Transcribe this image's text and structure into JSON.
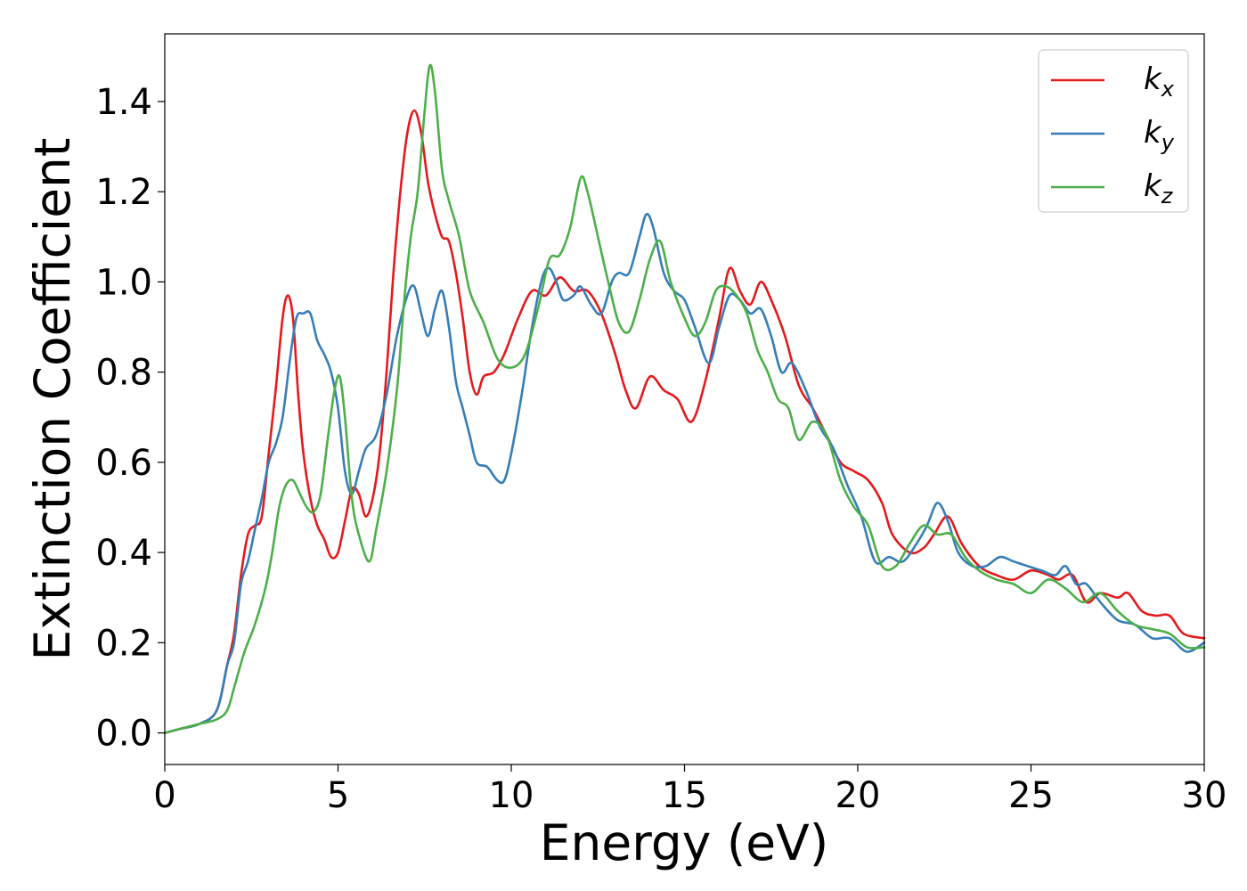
{
  "chart_data": {
    "type": "line",
    "title": "",
    "xlabel": "Energy (eV)",
    "ylabel": "Extinction Coefficient",
    "xlim": [
      0,
      30
    ],
    "ylim": [
      -0.07,
      1.55
    ],
    "xticks": [
      0,
      5,
      10,
      15,
      20,
      25,
      30
    ],
    "xtick_labels": [
      "0",
      "5",
      "10",
      "15",
      "20",
      "25",
      "30"
    ],
    "yticks": [
      0.0,
      0.2,
      0.4,
      0.6,
      0.8,
      1.0,
      1.2,
      1.4
    ],
    "ytick_labels": [
      "0.0",
      "0.2",
      "0.4",
      "0.6",
      "0.8",
      "1.0",
      "1.2",
      "1.4"
    ],
    "grid": false,
    "legend_position": "top-right",
    "series": [
      {
        "name": "k_x",
        "label_base": "k",
        "label_sub": "x",
        "color": "#e41a1c",
        "points": [
          [
            0,
            0
          ],
          [
            0.5,
            0.01
          ],
          [
            1.0,
            0.02
          ],
          [
            1.5,
            0.05
          ],
          [
            1.8,
            0.15
          ],
          [
            2.0,
            0.22
          ],
          [
            2.2,
            0.35
          ],
          [
            2.4,
            0.44
          ],
          [
            2.6,
            0.46
          ],
          [
            2.8,
            0.48
          ],
          [
            3.0,
            0.62
          ],
          [
            3.2,
            0.76
          ],
          [
            3.4,
            0.92
          ],
          [
            3.55,
            0.97
          ],
          [
            3.7,
            0.92
          ],
          [
            3.85,
            0.75
          ],
          [
            4.0,
            0.62
          ],
          [
            4.2,
            0.52
          ],
          [
            4.4,
            0.46
          ],
          [
            4.6,
            0.43
          ],
          [
            4.8,
            0.39
          ],
          [
            5.0,
            0.4
          ],
          [
            5.2,
            0.47
          ],
          [
            5.4,
            0.54
          ],
          [
            5.6,
            0.53
          ],
          [
            5.8,
            0.48
          ],
          [
            6.0,
            0.52
          ],
          [
            6.2,
            0.62
          ],
          [
            6.4,
            0.8
          ],
          [
            6.6,
            1.02
          ],
          [
            6.8,
            1.2
          ],
          [
            7.0,
            1.33
          ],
          [
            7.2,
            1.38
          ],
          [
            7.4,
            1.33
          ],
          [
            7.6,
            1.22
          ],
          [
            7.8,
            1.15
          ],
          [
            8.0,
            1.1
          ],
          [
            8.2,
            1.09
          ],
          [
            8.4,
            1.02
          ],
          [
            8.6,
            0.92
          ],
          [
            8.8,
            0.8
          ],
          [
            9.0,
            0.75
          ],
          [
            9.2,
            0.79
          ],
          [
            9.5,
            0.8
          ],
          [
            9.8,
            0.84
          ],
          [
            10.2,
            0.92
          ],
          [
            10.6,
            0.98
          ],
          [
            11.0,
            0.97
          ],
          [
            11.4,
            1.01
          ],
          [
            11.8,
            0.98
          ],
          [
            12.2,
            0.98
          ],
          [
            12.6,
            0.93
          ],
          [
            13.0,
            0.84
          ],
          [
            13.3,
            0.76
          ],
          [
            13.6,
            0.72
          ],
          [
            14.0,
            0.79
          ],
          [
            14.4,
            0.76
          ],
          [
            14.8,
            0.74
          ],
          [
            15.2,
            0.69
          ],
          [
            15.6,
            0.78
          ],
          [
            16.0,
            0.92
          ],
          [
            16.3,
            1.03
          ],
          [
            16.6,
            0.98
          ],
          [
            16.9,
            0.95
          ],
          [
            17.2,
            1.0
          ],
          [
            17.5,
            0.96
          ],
          [
            17.9,
            0.88
          ],
          [
            18.3,
            0.77
          ],
          [
            18.7,
            0.72
          ],
          [
            19.1,
            0.66
          ],
          [
            19.5,
            0.6
          ],
          [
            19.9,
            0.58
          ],
          [
            20.3,
            0.56
          ],
          [
            20.7,
            0.51
          ],
          [
            21.0,
            0.44
          ],
          [
            21.5,
            0.4
          ],
          [
            21.9,
            0.41
          ],
          [
            22.2,
            0.44
          ],
          [
            22.6,
            0.48
          ],
          [
            23.0,
            0.42
          ],
          [
            23.5,
            0.37
          ],
          [
            24.0,
            0.35
          ],
          [
            24.5,
            0.34
          ],
          [
            25.0,
            0.36
          ],
          [
            25.5,
            0.35
          ],
          [
            25.8,
            0.34
          ],
          [
            26.2,
            0.35
          ],
          [
            26.6,
            0.29
          ],
          [
            27.0,
            0.31
          ],
          [
            27.5,
            0.3
          ],
          [
            27.8,
            0.31
          ],
          [
            28.2,
            0.27
          ],
          [
            28.6,
            0.26
          ],
          [
            29.0,
            0.26
          ],
          [
            29.4,
            0.22
          ],
          [
            30.0,
            0.21
          ]
        ]
      },
      {
        "name": "k_y",
        "label_base": "k",
        "label_sub": "y",
        "color": "#377eb8",
        "points": [
          [
            0,
            0
          ],
          [
            0.5,
            0.01
          ],
          [
            1.0,
            0.02
          ],
          [
            1.5,
            0.05
          ],
          [
            1.8,
            0.15
          ],
          [
            2.0,
            0.2
          ],
          [
            2.2,
            0.33
          ],
          [
            2.4,
            0.38
          ],
          [
            2.6,
            0.45
          ],
          [
            2.8,
            0.52
          ],
          [
            3.0,
            0.6
          ],
          [
            3.2,
            0.64
          ],
          [
            3.4,
            0.7
          ],
          [
            3.6,
            0.82
          ],
          [
            3.8,
            0.92
          ],
          [
            4.0,
            0.93
          ],
          [
            4.2,
            0.93
          ],
          [
            4.4,
            0.87
          ],
          [
            4.6,
            0.84
          ],
          [
            4.8,
            0.8
          ],
          [
            5.0,
            0.72
          ],
          [
            5.2,
            0.58
          ],
          [
            5.4,
            0.53
          ],
          [
            5.6,
            0.58
          ],
          [
            5.8,
            0.63
          ],
          [
            6.1,
            0.66
          ],
          [
            6.4,
            0.75
          ],
          [
            6.7,
            0.88
          ],
          [
            7.0,
            0.97
          ],
          [
            7.2,
            0.99
          ],
          [
            7.4,
            0.93
          ],
          [
            7.6,
            0.88
          ],
          [
            7.8,
            0.94
          ],
          [
            8.0,
            0.98
          ],
          [
            8.2,
            0.9
          ],
          [
            8.4,
            0.78
          ],
          [
            8.6,
            0.72
          ],
          [
            8.8,
            0.66
          ],
          [
            9.0,
            0.6
          ],
          [
            9.3,
            0.59
          ],
          [
            9.6,
            0.56
          ],
          [
            9.8,
            0.56
          ],
          [
            10.0,
            0.62
          ],
          [
            10.3,
            0.75
          ],
          [
            10.6,
            0.9
          ],
          [
            10.9,
            1.01
          ],
          [
            11.1,
            1.03
          ],
          [
            11.3,
            1.0
          ],
          [
            11.5,
            0.96
          ],
          [
            11.8,
            0.97
          ],
          [
            12.0,
            0.99
          ],
          [
            12.3,
            0.95
          ],
          [
            12.6,
            0.93
          ],
          [
            12.9,
            1.0
          ],
          [
            13.1,
            1.02
          ],
          [
            13.4,
            1.02
          ],
          [
            13.7,
            1.1
          ],
          [
            13.9,
            1.15
          ],
          [
            14.1,
            1.12
          ],
          [
            14.4,
            1.02
          ],
          [
            14.7,
            0.98
          ],
          [
            15.0,
            0.96
          ],
          [
            15.3,
            0.9
          ],
          [
            15.7,
            0.82
          ],
          [
            16.0,
            0.9
          ],
          [
            16.3,
            0.97
          ],
          [
            16.6,
            0.96
          ],
          [
            16.9,
            0.93
          ],
          [
            17.2,
            0.94
          ],
          [
            17.5,
            0.88
          ],
          [
            17.8,
            0.8
          ],
          [
            18.1,
            0.82
          ],
          [
            18.5,
            0.76
          ],
          [
            18.9,
            0.68
          ],
          [
            19.3,
            0.63
          ],
          [
            19.7,
            0.55
          ],
          [
            20.1,
            0.48
          ],
          [
            20.5,
            0.38
          ],
          [
            20.9,
            0.39
          ],
          [
            21.3,
            0.38
          ],
          [
            21.7,
            0.42
          ],
          [
            22.0,
            0.46
          ],
          [
            22.3,
            0.51
          ],
          [
            22.6,
            0.47
          ],
          [
            22.9,
            0.4
          ],
          [
            23.3,
            0.37
          ],
          [
            23.7,
            0.37
          ],
          [
            24.1,
            0.39
          ],
          [
            24.5,
            0.38
          ],
          [
            24.9,
            0.37
          ],
          [
            25.3,
            0.36
          ],
          [
            25.7,
            0.35
          ],
          [
            26.0,
            0.37
          ],
          [
            26.3,
            0.33
          ],
          [
            26.6,
            0.33
          ],
          [
            27.0,
            0.29
          ],
          [
            27.5,
            0.25
          ],
          [
            28.0,
            0.24
          ],
          [
            28.5,
            0.21
          ],
          [
            29.0,
            0.21
          ],
          [
            29.5,
            0.18
          ],
          [
            30.0,
            0.2
          ]
        ]
      },
      {
        "name": "k_z",
        "label_base": "k",
        "label_sub": "z",
        "color": "#4daf4a",
        "points": [
          [
            0,
            0
          ],
          [
            0.5,
            0.01
          ],
          [
            1.0,
            0.02
          ],
          [
            1.5,
            0.03
          ],
          [
            1.8,
            0.05
          ],
          [
            2.0,
            0.1
          ],
          [
            2.3,
            0.18
          ],
          [
            2.6,
            0.24
          ],
          [
            2.9,
            0.32
          ],
          [
            3.1,
            0.4
          ],
          [
            3.3,
            0.5
          ],
          [
            3.5,
            0.55
          ],
          [
            3.7,
            0.56
          ],
          [
            3.9,
            0.53
          ],
          [
            4.1,
            0.5
          ],
          [
            4.3,
            0.49
          ],
          [
            4.5,
            0.53
          ],
          [
            4.7,
            0.65
          ],
          [
            4.9,
            0.76
          ],
          [
            5.05,
            0.79
          ],
          [
            5.2,
            0.7
          ],
          [
            5.4,
            0.52
          ],
          [
            5.6,
            0.44
          ],
          [
            5.9,
            0.38
          ],
          [
            6.1,
            0.45
          ],
          [
            6.4,
            0.58
          ],
          [
            6.7,
            0.76
          ],
          [
            6.9,
            0.95
          ],
          [
            7.1,
            1.1
          ],
          [
            7.3,
            1.2
          ],
          [
            7.5,
            1.38
          ],
          [
            7.65,
            1.48
          ],
          [
            7.8,
            1.42
          ],
          [
            8.0,
            1.25
          ],
          [
            8.2,
            1.18
          ],
          [
            8.5,
            1.1
          ],
          [
            8.8,
            0.98
          ],
          [
            9.2,
            0.91
          ],
          [
            9.6,
            0.83
          ],
          [
            10.0,
            0.81
          ],
          [
            10.4,
            0.84
          ],
          [
            10.8,
            0.95
          ],
          [
            11.1,
            1.05
          ],
          [
            11.4,
            1.06
          ],
          [
            11.7,
            1.12
          ],
          [
            12.0,
            1.23
          ],
          [
            12.2,
            1.2
          ],
          [
            12.5,
            1.1
          ],
          [
            12.8,
            1.0
          ],
          [
            13.1,
            0.91
          ],
          [
            13.4,
            0.89
          ],
          [
            13.7,
            0.96
          ],
          [
            14.0,
            1.05
          ],
          [
            14.3,
            1.09
          ],
          [
            14.6,
            1.0
          ],
          [
            15.0,
            0.92
          ],
          [
            15.3,
            0.88
          ],
          [
            15.6,
            0.91
          ],
          [
            15.9,
            0.98
          ],
          [
            16.2,
            0.99
          ],
          [
            16.5,
            0.97
          ],
          [
            16.8,
            0.93
          ],
          [
            17.1,
            0.85
          ],
          [
            17.4,
            0.8
          ],
          [
            17.7,
            0.74
          ],
          [
            18.0,
            0.72
          ],
          [
            18.3,
            0.65
          ],
          [
            18.7,
            0.69
          ],
          [
            19.1,
            0.66
          ],
          [
            19.5,
            0.56
          ],
          [
            19.9,
            0.5
          ],
          [
            20.3,
            0.46
          ],
          [
            20.7,
            0.37
          ],
          [
            21.1,
            0.37
          ],
          [
            21.5,
            0.42
          ],
          [
            21.9,
            0.46
          ],
          [
            22.3,
            0.44
          ],
          [
            22.7,
            0.44
          ],
          [
            23.1,
            0.39
          ],
          [
            23.5,
            0.36
          ],
          [
            24.0,
            0.34
          ],
          [
            24.5,
            0.33
          ],
          [
            25.0,
            0.31
          ],
          [
            25.5,
            0.34
          ],
          [
            26.0,
            0.32
          ],
          [
            26.5,
            0.29
          ],
          [
            27.0,
            0.31
          ],
          [
            27.5,
            0.27
          ],
          [
            28.0,
            0.24
          ],
          [
            28.5,
            0.23
          ],
          [
            29.0,
            0.22
          ],
          [
            29.5,
            0.19
          ],
          [
            30.0,
            0.19
          ]
        ]
      }
    ]
  }
}
